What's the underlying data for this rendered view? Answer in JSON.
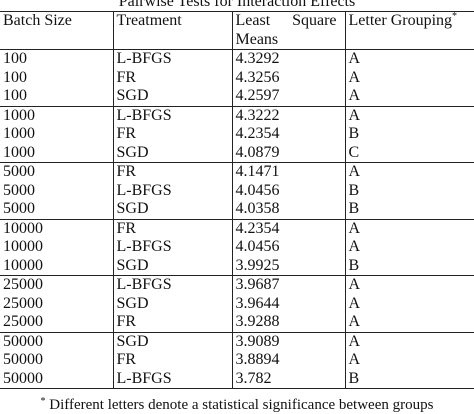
{
  "table": {
    "title": "Pairwise Tests for Interaction Effects",
    "headers": {
      "batch_size": "Batch Size",
      "treatment": "Treatment",
      "lsm_part1": "Least",
      "lsm_part2": "Square",
      "lsm_part3": "Means",
      "letter_grouping": "Letter Grouping",
      "letter_grouping_mark": "*"
    },
    "groups": [
      {
        "rows": [
          {
            "batch": "100",
            "treatment": "L-BFGS",
            "mean": "4.3292",
            "group": "A"
          },
          {
            "batch": "100",
            "treatment": "FR",
            "mean": "4.3256",
            "group": "A"
          },
          {
            "batch": "100",
            "treatment": "SGD",
            "mean": "4.2597",
            "group": "A"
          }
        ]
      },
      {
        "rows": [
          {
            "batch": "1000",
            "treatment": "L-BFGS",
            "mean": "4.3222",
            "group": "A"
          },
          {
            "batch": "1000",
            "treatment": "FR",
            "mean": "4.2354",
            "group": "B"
          },
          {
            "batch": "1000",
            "treatment": "SGD",
            "mean": "4.0879",
            "group": "C"
          }
        ]
      },
      {
        "rows": [
          {
            "batch": "5000",
            "treatment": "FR",
            "mean": "4.1471",
            "group": "A"
          },
          {
            "batch": "5000",
            "treatment": "L-BFGS",
            "mean": "4.0456",
            "group": "B"
          },
          {
            "batch": "5000",
            "treatment": "SGD",
            "mean": "4.0358",
            "group": "B"
          }
        ]
      },
      {
        "rows": [
          {
            "batch": "10000",
            "treatment": "FR",
            "mean": "4.2354",
            "group": "A"
          },
          {
            "batch": "10000",
            "treatment": "L-BFGS",
            "mean": "4.0456",
            "group": "A"
          },
          {
            "batch": "10000",
            "treatment": "SGD",
            "mean": "3.9925",
            "group": "B"
          }
        ]
      },
      {
        "rows": [
          {
            "batch": "25000",
            "treatment": "L-BFGS",
            "mean": "3.9687",
            "group": "A"
          },
          {
            "batch": "25000",
            "treatment": "SGD",
            "mean": "3.9644",
            "group": "A"
          },
          {
            "batch": "25000",
            "treatment": "FR",
            "mean": "3.9288",
            "group": "A"
          }
        ]
      },
      {
        "rows": [
          {
            "batch": "50000",
            "treatment": "SGD",
            "mean": "3.9089",
            "group": "A"
          },
          {
            "batch": "50000",
            "treatment": "FR",
            "mean": "3.8894",
            "group": "A"
          },
          {
            "batch": "50000",
            "treatment": "L-BFGS",
            "mean": "3.782",
            "group": "B"
          }
        ]
      }
    ],
    "footnote": {
      "mark": "*",
      "text": "Different letters denote a statistical significance between groups"
    }
  }
}
